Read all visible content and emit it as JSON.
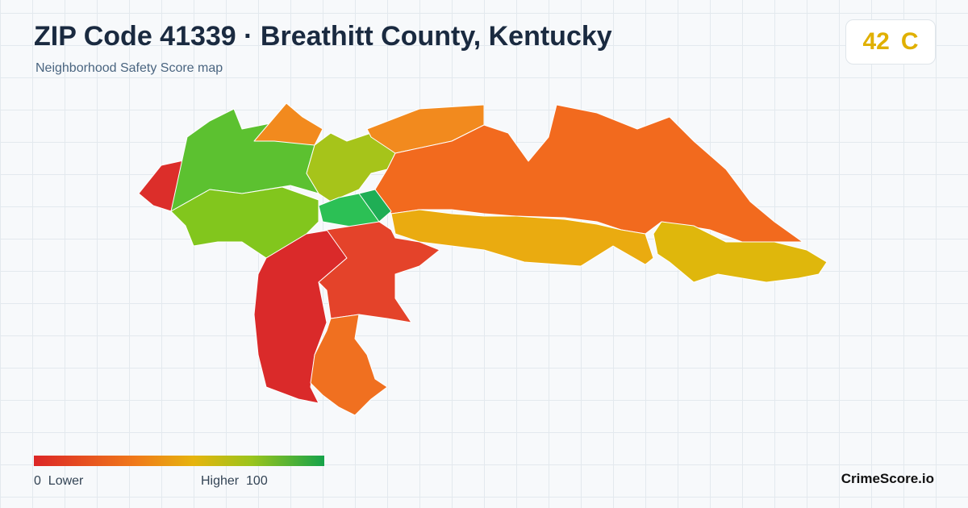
{
  "header": {
    "title": "ZIP Code 41339 · Breathitt County, Kentucky",
    "subtitle": "Neighborhood Safety Score map"
  },
  "score": {
    "value": 42,
    "grade": "C"
  },
  "legend": {
    "min": 0,
    "min_label": "Lower",
    "max_label": "Higher",
    "max": 100
  },
  "brand": "CrimeScore.io"
}
